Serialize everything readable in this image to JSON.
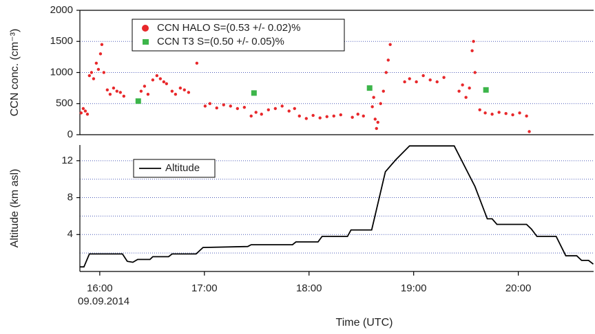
{
  "chart_data": [
    {
      "type": "scatter",
      "ylabel": "CCN conc. (cm⁻³)",
      "ylim": [
        0,
        2000
      ],
      "yticks": [
        0,
        500,
        1000,
        1500,
        2000
      ],
      "grid": true,
      "legend": "upper left",
      "xlim": [
        15.81,
        20.72
      ],
      "series": [
        {
          "name": "CCN HALO S=(0.53 +/- 0.02)%",
          "color": "#e8282b",
          "marker": "circle",
          "x": [
            15.822,
            15.842,
            15.862,
            15.882,
            15.901,
            15.921,
            15.941,
            15.967,
            15.987,
            16.007,
            16.02,
            16.039,
            16.072,
            16.099,
            16.132,
            16.164,
            16.197,
            16.23,
            16.395,
            16.428,
            16.461,
            16.507,
            16.546,
            16.579,
            16.612,
            16.638,
            16.691,
            16.724,
            16.77,
            16.809,
            16.849,
            16.928,
            17.007,
            17.053,
            17.118,
            17.184,
            17.25,
            17.316,
            17.382,
            17.447,
            17.493,
            17.546,
            17.612,
            17.678,
            17.743,
            17.809,
            17.862,
            17.908,
            17.974,
            18.039,
            18.105,
            18.171,
            18.237,
            18.303,
            18.414,
            18.467,
            18.52,
            18.605,
            18.618,
            18.632,
            18.645,
            18.658,
            18.684,
            18.711,
            18.737,
            18.757,
            18.776,
            18.914,
            18.961,
            19.026,
            19.092,
            19.158,
            19.224,
            19.289,
            19.434,
            19.467,
            19.5,
            19.533,
            19.559,
            19.572,
            19.586,
            19.632,
            19.684,
            19.75,
            19.816,
            19.882,
            19.947,
            20.013,
            20.079,
            20.105
          ],
          "values": [
            350,
            420,
            380,
            330,
            950,
            1000,
            900,
            1150,
            1050,
            1300,
            1450,
            1000,
            720,
            650,
            750,
            700,
            680,
            620,
            700,
            780,
            650,
            880,
            950,
            900,
            850,
            820,
            700,
            650,
            750,
            720,
            680,
            1150,
            460,
            500,
            430,
            480,
            460,
            420,
            440,
            300,
            360,
            330,
            400,
            420,
            460,
            380,
            420,
            300,
            260,
            310,
            270,
            290,
            300,
            320,
            280,
            330,
            300,
            450,
            600,
            250,
            100,
            200,
            500,
            700,
            1000,
            1200,
            1450,
            850,
            900,
            850,
            950,
            880,
            850,
            920,
            700,
            800,
            600,
            750,
            1350,
            1500,
            1000,
            400,
            350,
            330,
            360,
            340,
            320,
            350,
            300,
            50
          ]
        },
        {
          "name": "CCN T3 S=(0.50 +/- 0.05)%",
          "color": "#3cb54a",
          "marker": "square",
          "x": [
            16.368,
            17.474,
            18.579,
            19.691
          ],
          "values": [
            540,
            670,
            750,
            720
          ]
        }
      ]
    },
    {
      "type": "line",
      "ylabel": "Altitude (km asl)",
      "xlabel": "Time (UTC)",
      "annotation": "09.09.2014",
      "ylim": [
        0,
        13.7
      ],
      "yticks": [
        4,
        8,
        12
      ],
      "minor_yticks": [
        2,
        6,
        10
      ],
      "grid": true,
      "legend": "upper left",
      "xlim": [
        15.81,
        20.72
      ],
      "xticks": [
        {
          "value": 16,
          "label": "16:00"
        },
        {
          "value": 17,
          "label": "17:00"
        },
        {
          "value": 18,
          "label": "18:00"
        },
        {
          "value": 19,
          "label": "19:00"
        },
        {
          "value": 20,
          "label": "20:00"
        }
      ],
      "series": [
        {
          "name": "Altitude",
          "color": "#000000",
          "x": [
            15.809,
            15.849,
            15.901,
            16.217,
            16.263,
            16.316,
            16.362,
            16.48,
            16.507,
            16.658,
            16.691,
            16.921,
            16.987,
            17.414,
            17.447,
            17.842,
            17.875,
            18.086,
            18.125,
            18.368,
            18.401,
            18.599,
            18.73,
            18.829,
            18.961,
            19.388,
            19.586,
            19.704,
            19.75,
            19.796,
            20.079,
            20.125,
            20.178,
            20.362,
            20.454,
            20.559,
            20.605,
            20.671,
            20.717
          ],
          "values": [
            0.5,
            0.5,
            1.9,
            1.9,
            1.1,
            1.0,
            1.3,
            1.3,
            1.6,
            1.6,
            1.9,
            1.9,
            2.6,
            2.7,
            2.9,
            2.9,
            3.2,
            3.2,
            3.8,
            3.8,
            4.5,
            4.5,
            10.8,
            12.1,
            13.6,
            13.6,
            9.2,
            5.7,
            5.7,
            5.1,
            5.1,
            4.6,
            3.8,
            3.8,
            1.7,
            1.7,
            1.2,
            1.2,
            0.8
          ]
        }
      ]
    }
  ]
}
